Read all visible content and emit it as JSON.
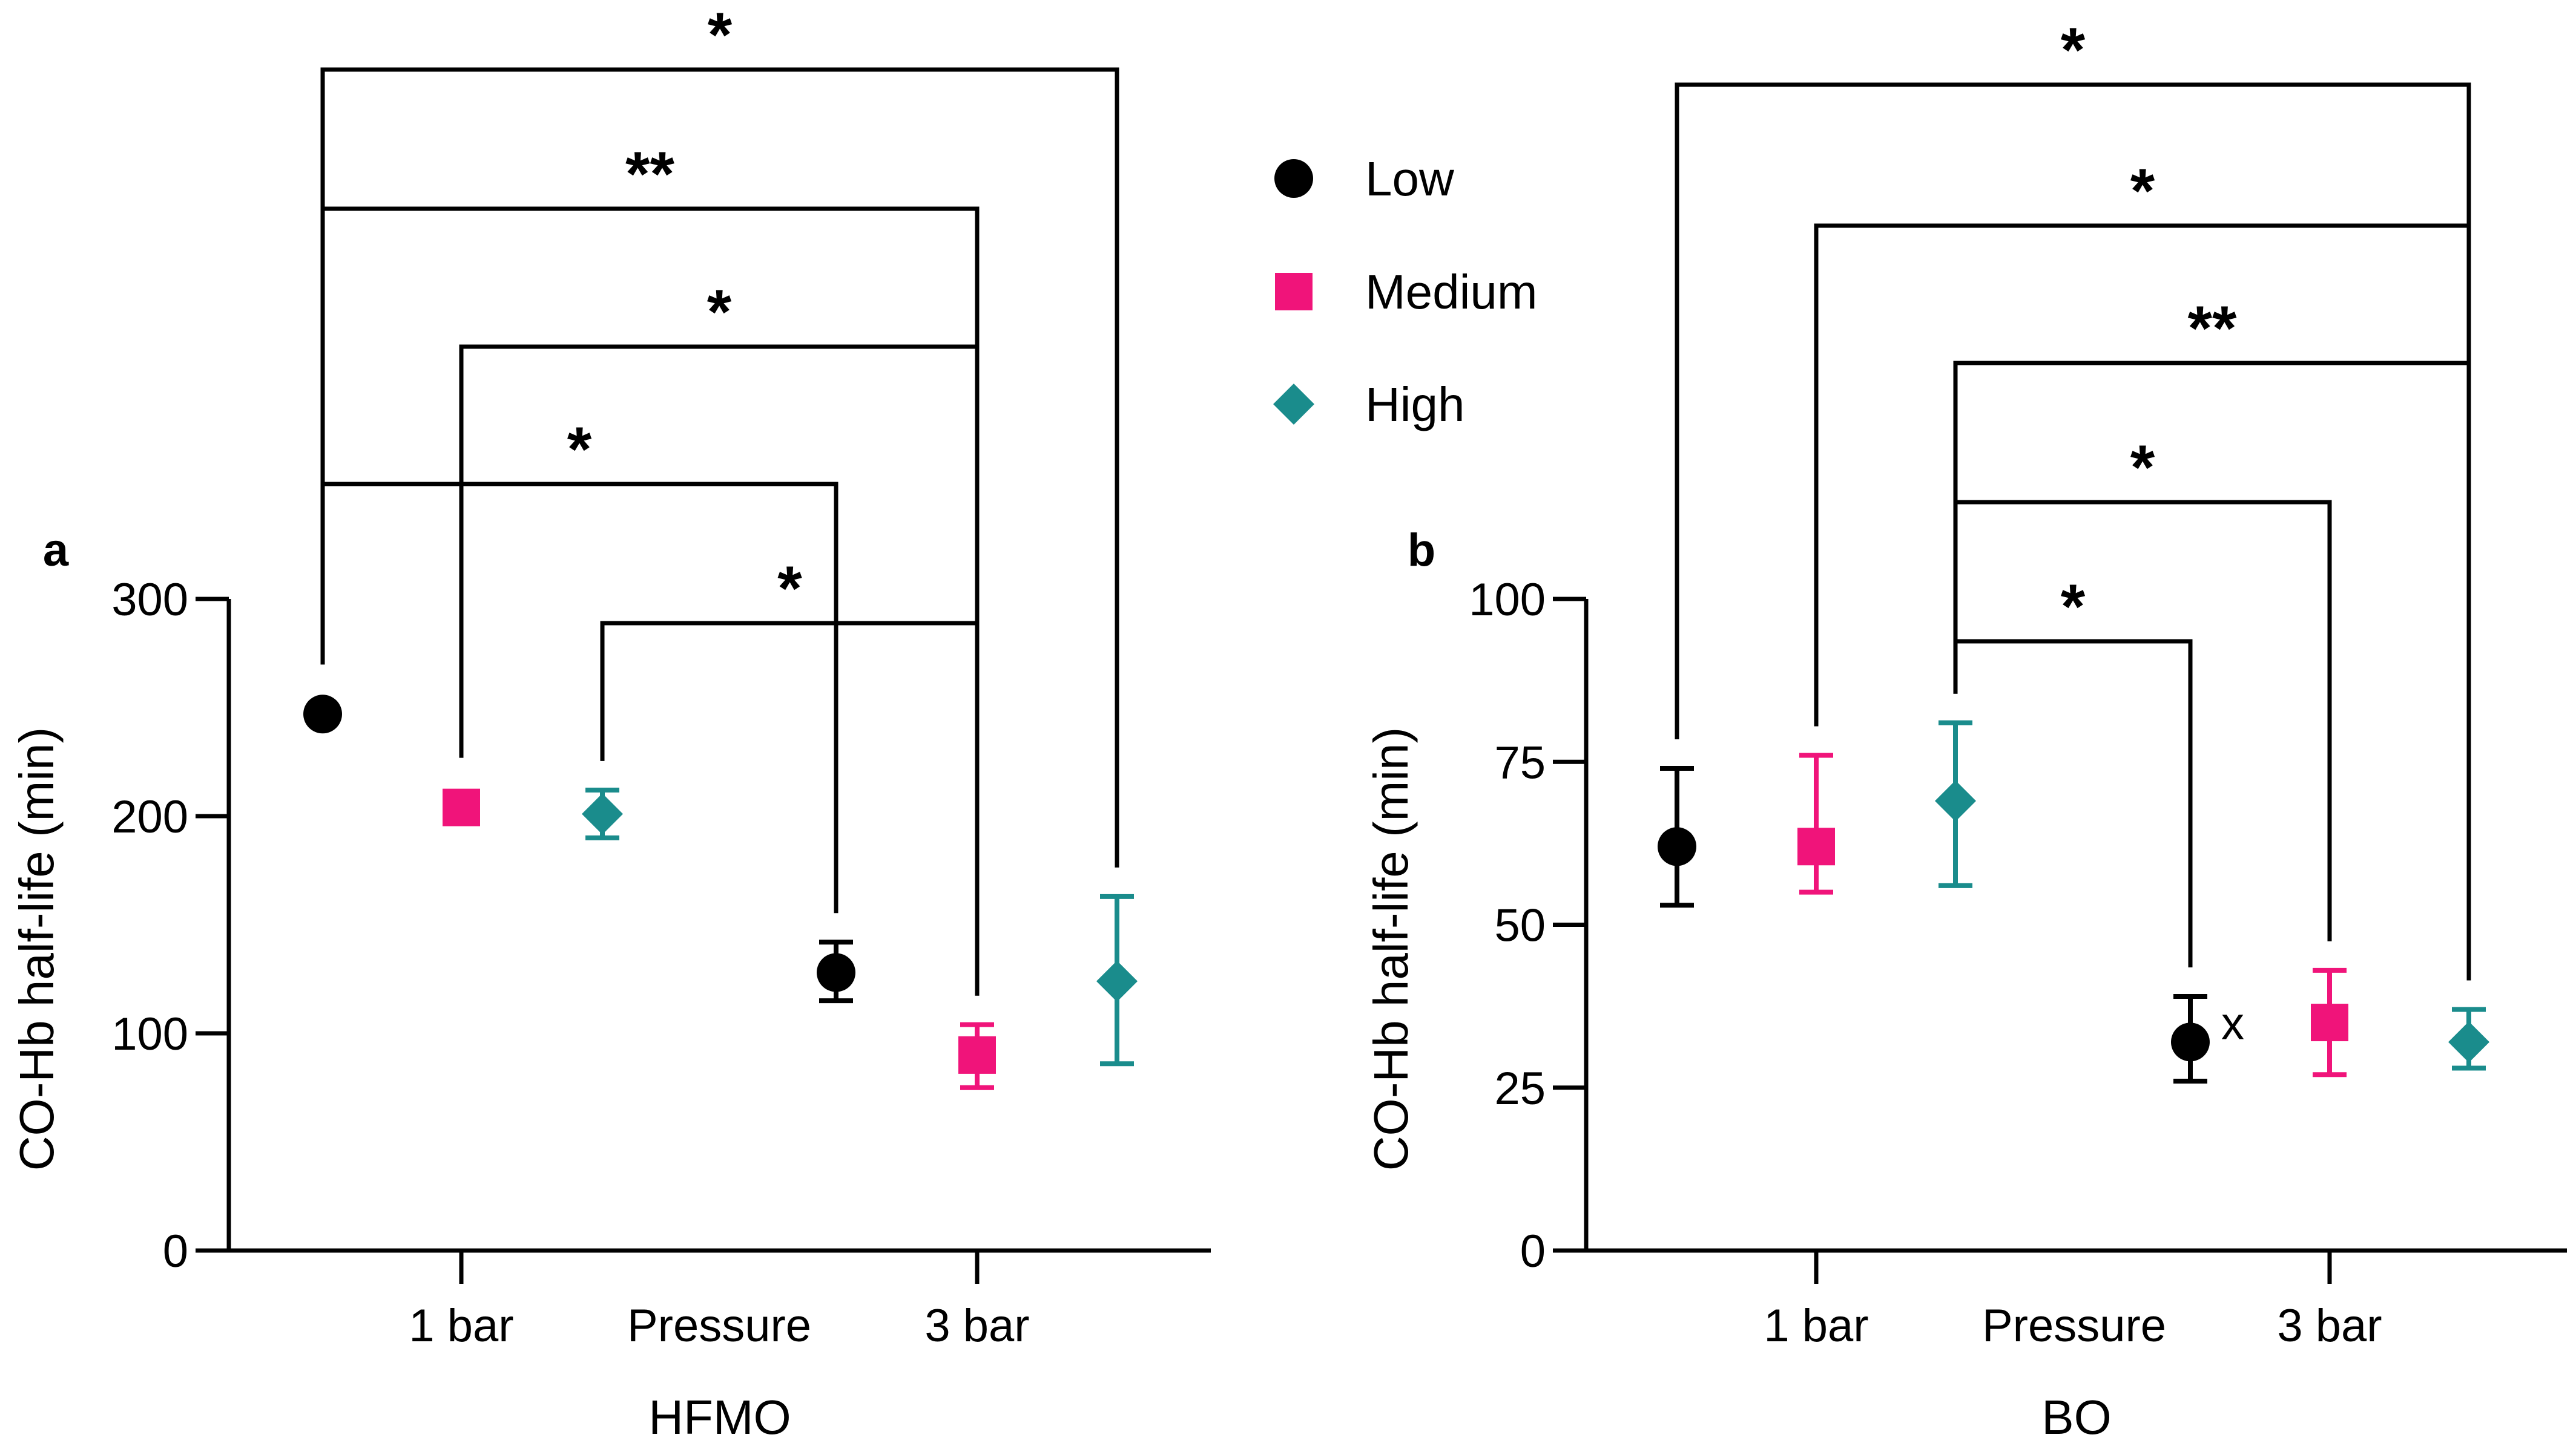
{
  "colors": {
    "Low": "#000000",
    "Medium": "#f0147a",
    "High": "#1a8c8c"
  },
  "legend": [
    {
      "label": "Low",
      "marker": "circle"
    },
    {
      "label": "Medium",
      "marker": "square"
    },
    {
      "label": "High",
      "marker": "diamond"
    }
  ],
  "chart_data": [
    {
      "type": "scatter",
      "panel": "a",
      "xlabel": "HFMO",
      "ylabel": "CO-Hb half-life (min)",
      "xtick_labels": [
        "1 bar",
        "Pressure",
        "3 bar"
      ],
      "ylim": [
        0,
        300
      ],
      "yticks": [
        "0",
        "100",
        "200",
        "300"
      ],
      "series": [
        {
          "pressure": "1 bar",
          "group": "Low",
          "value": 247,
          "err_low": 247,
          "err_high": 247
        },
        {
          "pressure": "1 bar",
          "group": "Medium",
          "value": 204,
          "err_low": 204,
          "err_high": 204
        },
        {
          "pressure": "1 bar",
          "group": "High",
          "value": 201,
          "err_low": 190,
          "err_high": 212
        },
        {
          "pressure": "3 bar",
          "group": "Low",
          "value": 128,
          "err_low": 115,
          "err_high": 142
        },
        {
          "pressure": "3 bar",
          "group": "Medium",
          "value": 90,
          "err_low": 75,
          "err_high": 104
        },
        {
          "pressure": "3 bar",
          "group": "High",
          "value": 124,
          "err_low": 86,
          "err_high": 163
        }
      ],
      "comparisons": [
        {
          "from": "1 bar Low",
          "to": "3 bar High",
          "label": "*"
        },
        {
          "from": "1 bar Low",
          "to": "3 bar Medium",
          "label": "**"
        },
        {
          "from": "1 bar Medium",
          "to": "3 bar Medium",
          "label": "*"
        },
        {
          "from": "1 bar Low",
          "to": "3 bar Low",
          "label": "*"
        },
        {
          "from": "1 bar High",
          "to": "3 bar Medium",
          "label": "*"
        }
      ]
    },
    {
      "type": "scatter",
      "panel": "b",
      "xlabel": "BO",
      "ylabel": "CO-Hb half-life (min)",
      "xtick_labels": [
        "1 bar",
        "Pressure",
        "3 bar"
      ],
      "ylim": [
        0,
        100
      ],
      "yticks": [
        "0",
        "25",
        "50",
        "75",
        "100"
      ],
      "series": [
        {
          "pressure": "1 bar",
          "group": "Low",
          "value": 62,
          "err_low": 53,
          "err_high": 74
        },
        {
          "pressure": "1 bar",
          "group": "Medium",
          "value": 62,
          "err_low": 55,
          "err_high": 76
        },
        {
          "pressure": "1 bar",
          "group": "High",
          "value": 69,
          "err_low": 56,
          "err_high": 81
        },
        {
          "pressure": "3 bar",
          "group": "Low",
          "value": 32,
          "err_low": 26,
          "err_high": 39,
          "annotation": "x"
        },
        {
          "pressure": "3 bar",
          "group": "Medium",
          "value": 35,
          "err_low": 27,
          "err_high": 43
        },
        {
          "pressure": "3 bar",
          "group": "High",
          "value": 32,
          "err_low": 28,
          "err_high": 37
        }
      ],
      "comparisons": [
        {
          "from": "1 bar Low",
          "to": "3 bar High",
          "label": "*"
        },
        {
          "from": "1 bar Medium",
          "to": "3 bar High",
          "label": "*"
        },
        {
          "from": "1 bar High",
          "to": "3 bar High",
          "label": "**"
        },
        {
          "from": "1 bar High",
          "to": "3 bar Medium",
          "label": "*"
        },
        {
          "from": "1 bar High",
          "to": "3 bar Low",
          "label": "*"
        }
      ]
    }
  ]
}
